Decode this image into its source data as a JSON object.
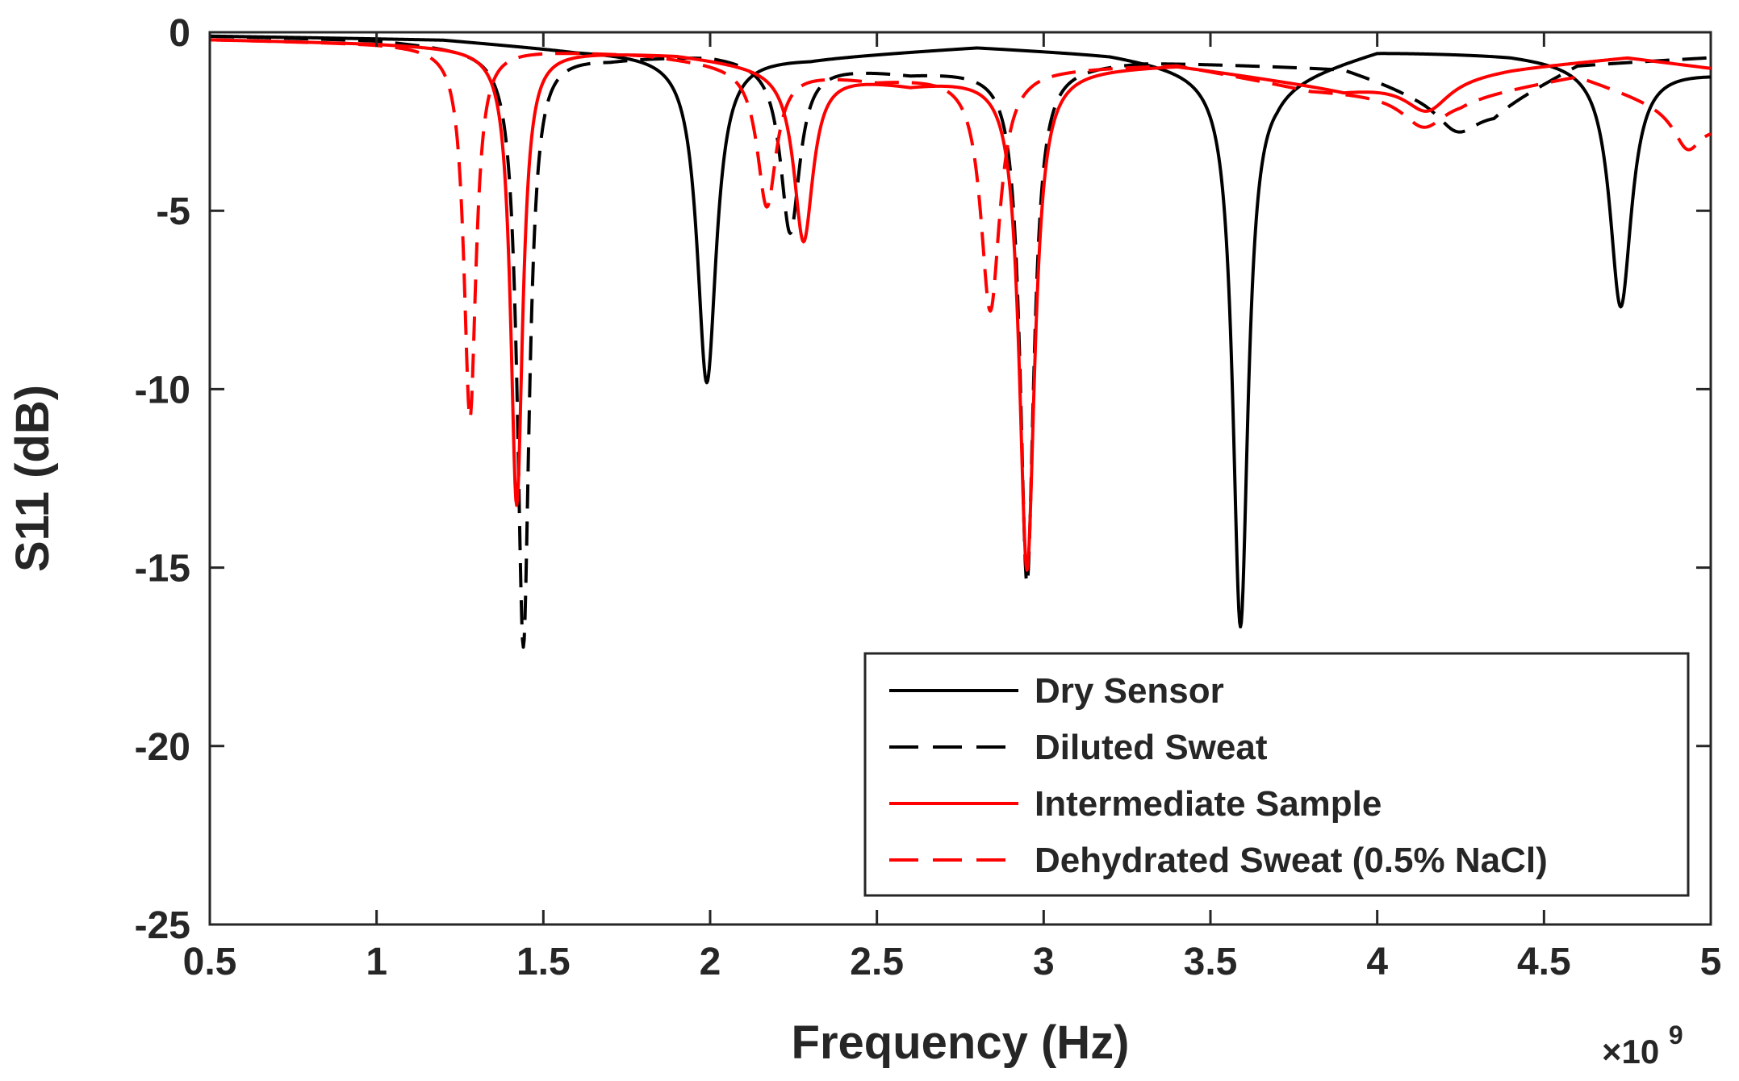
{
  "chart_data": {
    "type": "line",
    "title": "",
    "xlabel": "Frequency (Hz)",
    "ylabel": "S11 (dB)",
    "x_multiplier_label": "×10",
    "x_multiplier_exponent": "9",
    "xlim": [
      0.5,
      5
    ],
    "ylim": [
      -25,
      0
    ],
    "x_ticks": [
      0.5,
      1,
      1.5,
      2,
      2.5,
      3,
      3.5,
      4,
      4.5,
      5
    ],
    "x_tick_labels": [
      "0.5",
      "1",
      "1.5",
      "2",
      "2.5",
      "3",
      "3.5",
      "4",
      "4.5",
      "5"
    ],
    "y_ticks": [
      0,
      -5,
      -10,
      -15,
      -20,
      -25
    ],
    "y_tick_labels": [
      "0",
      "-5",
      "-10",
      "-15",
      "-20",
      "-25"
    ],
    "grid": false,
    "legend_position": "bottom-right",
    "series": [
      {
        "name": "Dry Sensor",
        "color": "#000000",
        "dash": "solid",
        "baseline": [
          [
            0.5,
            -0.1
          ],
          [
            1.2,
            -0.2
          ],
          [
            1.6,
            -0.5
          ],
          [
            2.3,
            -0.7
          ],
          [
            2.8,
            -0.4
          ],
          [
            3.2,
            -0.6
          ],
          [
            3.7,
            -1.3
          ],
          [
            4.0,
            -0.5
          ],
          [
            4.4,
            -0.6
          ],
          [
            4.75,
            -0.9
          ],
          [
            5.0,
            -1.1
          ]
        ],
        "resonances": [
          {
            "f": 1.99,
            "depth": 9.2,
            "width": 0.035
          },
          {
            "f": 3.59,
            "depth": 15.5,
            "width": 0.028
          },
          {
            "f": 4.73,
            "depth": 6.8,
            "width": 0.04
          }
        ]
      },
      {
        "name": "Diluted Sweat",
        "color": "#000000",
        "dash": "long-dash",
        "baseline": [
          [
            0.5,
            -0.1
          ],
          [
            1.0,
            -0.2
          ],
          [
            1.7,
            -0.7
          ],
          [
            2.0,
            -0.6
          ],
          [
            2.6,
            -1.1
          ],
          [
            3.0,
            -0.9
          ],
          [
            3.3,
            -0.8
          ],
          [
            3.9,
            -1.0
          ],
          [
            4.1,
            -1.6
          ],
          [
            4.35,
            -2.1
          ],
          [
            4.6,
            -0.9
          ],
          [
            5.0,
            -0.7
          ]
        ],
        "resonances": [
          {
            "f": 1.44,
            "depth": 16.7,
            "width": 0.022
          },
          {
            "f": 2.24,
            "depth": 4.8,
            "width": 0.035
          },
          {
            "f": 2.95,
            "depth": 14.5,
            "width": 0.025
          },
          {
            "f": 4.24,
            "depth": 0.9,
            "width": 0.08
          }
        ]
      },
      {
        "name": "Intermediate Sample",
        "color": "#ff0000",
        "dash": "solid",
        "baseline": [
          [
            0.5,
            -0.2
          ],
          [
            1.0,
            -0.3
          ],
          [
            1.9,
            -0.6
          ],
          [
            2.6,
            -1.4
          ],
          [
            3.0,
            -1.0
          ],
          [
            3.4,
            -0.9
          ],
          [
            3.9,
            -1.6
          ],
          [
            4.4,
            -1.0
          ],
          [
            4.75,
            -0.7
          ],
          [
            5.0,
            -1.0
          ]
        ],
        "resonances": [
          {
            "f": 1.42,
            "depth": 12.8,
            "width": 0.022
          },
          {
            "f": 2.28,
            "depth": 4.8,
            "width": 0.035
          },
          {
            "f": 2.95,
            "depth": 14.0,
            "width": 0.028
          },
          {
            "f": 4.15,
            "depth": 0.9,
            "width": 0.08
          }
        ]
      },
      {
        "name": "Dehydrated Sweat (0.5% NaCl)",
        "color": "#ff0000",
        "dash": "long-dash",
        "baseline": [
          [
            0.5,
            -0.2
          ],
          [
            1.0,
            -0.3
          ],
          [
            1.8,
            -0.6
          ],
          [
            2.5,
            -1.3
          ],
          [
            3.0,
            -1.0
          ],
          [
            3.4,
            -0.9
          ],
          [
            3.8,
            -1.6
          ],
          [
            4.25,
            -1.8
          ],
          [
            4.6,
            -1.2
          ],
          [
            5.0,
            -2.5
          ]
        ],
        "resonances": [
          {
            "f": 1.28,
            "depth": 10.4,
            "width": 0.022
          },
          {
            "f": 2.17,
            "depth": 3.9,
            "width": 0.035
          },
          {
            "f": 2.84,
            "depth": 6.7,
            "width": 0.035
          },
          {
            "f": 4.14,
            "depth": 0.9,
            "width": 0.08
          },
          {
            "f": 4.93,
            "depth": 1.0,
            "width": 0.05
          }
        ]
      }
    ]
  }
}
